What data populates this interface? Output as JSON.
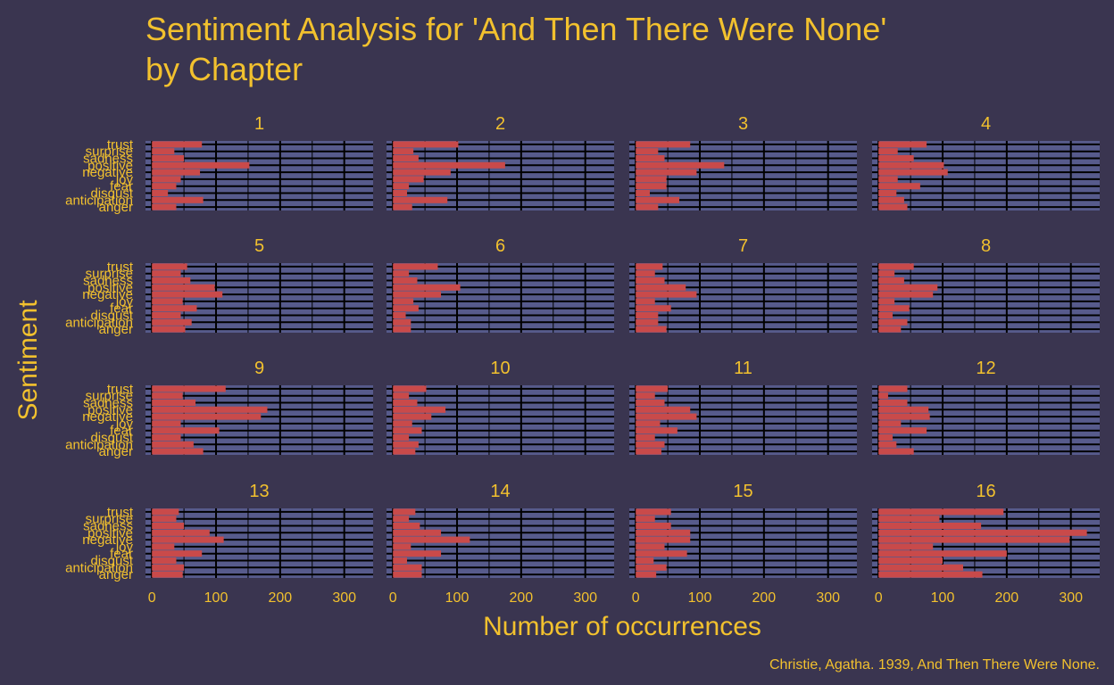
{
  "colors": {
    "background": "#3a3550",
    "panel": "#575b8c",
    "bar": "#c94a4a",
    "text": "#f2c12e",
    "grid": "#000000"
  },
  "chart_data": {
    "type": "bar",
    "orientation": "horizontal",
    "title": "Sentiment Analysis for 'And Then There Were None' by Chapter",
    "title_lines": [
      "Sentiment Analysis for 'And Then There Were None'",
      "by Chapter"
    ],
    "xlabel": "Number of occurrences",
    "ylabel": "Sentiment",
    "caption": "Christie, Agatha. 1939, And Then There Were None.",
    "categories": [
      "anger",
      "anticipation",
      "disgust",
      "fear",
      "joy",
      "negative",
      "positive",
      "sadness",
      "surprise",
      "trust"
    ],
    "xlim": [
      -10,
      345
    ],
    "x_ticks": [
      0,
      100,
      200,
      300
    ],
    "grid": true,
    "facets": [
      {
        "label": "1",
        "values": [
          38,
          80,
          25,
          38,
          45,
          75,
          152,
          50,
          35,
          78
        ]
      },
      {
        "label": "2",
        "values": [
          30,
          85,
          22,
          25,
          48,
          90,
          175,
          40,
          32,
          102
        ]
      },
      {
        "label": "3",
        "values": [
          35,
          68,
          22,
          48,
          48,
          95,
          138,
          45,
          35,
          85
        ]
      },
      {
        "label": "4",
        "values": [
          45,
          40,
          28,
          65,
          30,
          108,
          102,
          55,
          30,
          75
        ]
      },
      {
        "label": "5",
        "values": [
          52,
          62,
          45,
          70,
          48,
          110,
          98,
          60,
          45,
          55
        ]
      },
      {
        "label": "6",
        "values": [
          28,
          28,
          20,
          40,
          32,
          75,
          105,
          38,
          25,
          70
        ]
      },
      {
        "label": "7",
        "values": [
          48,
          35,
          35,
          55,
          30,
          95,
          78,
          45,
          30,
          42
        ]
      },
      {
        "label": "8",
        "values": [
          35,
          45,
          22,
          48,
          25,
          85,
          92,
          40,
          25,
          55
        ]
      },
      {
        "label": "9",
        "values": [
          80,
          65,
          45,
          105,
          45,
          170,
          180,
          68,
          48,
          115
        ]
      },
      {
        "label": "10",
        "values": [
          35,
          40,
          25,
          45,
          30,
          60,
          82,
          38,
          25,
          52
        ]
      },
      {
        "label": "11",
        "values": [
          40,
          45,
          30,
          65,
          38,
          95,
          85,
          45,
          30,
          50
        ]
      },
      {
        "label": "12",
        "values": [
          55,
          28,
          22,
          75,
          35,
          80,
          78,
          45,
          15,
          45
        ]
      },
      {
        "label": "13",
        "values": [
          48,
          50,
          38,
          78,
          35,
          112,
          90,
          50,
          38,
          42
        ]
      },
      {
        "label": "14",
        "values": [
          45,
          45,
          22,
          75,
          28,
          120,
          75,
          42,
          25,
          35
        ]
      },
      {
        "label": "15",
        "values": [
          32,
          48,
          28,
          80,
          45,
          85,
          85,
          55,
          30,
          55
        ]
      },
      {
        "label": "16",
        "values": [
          162,
          132,
          100,
          200,
          85,
          298,
          325,
          160,
          95,
          195
        ]
      }
    ]
  }
}
